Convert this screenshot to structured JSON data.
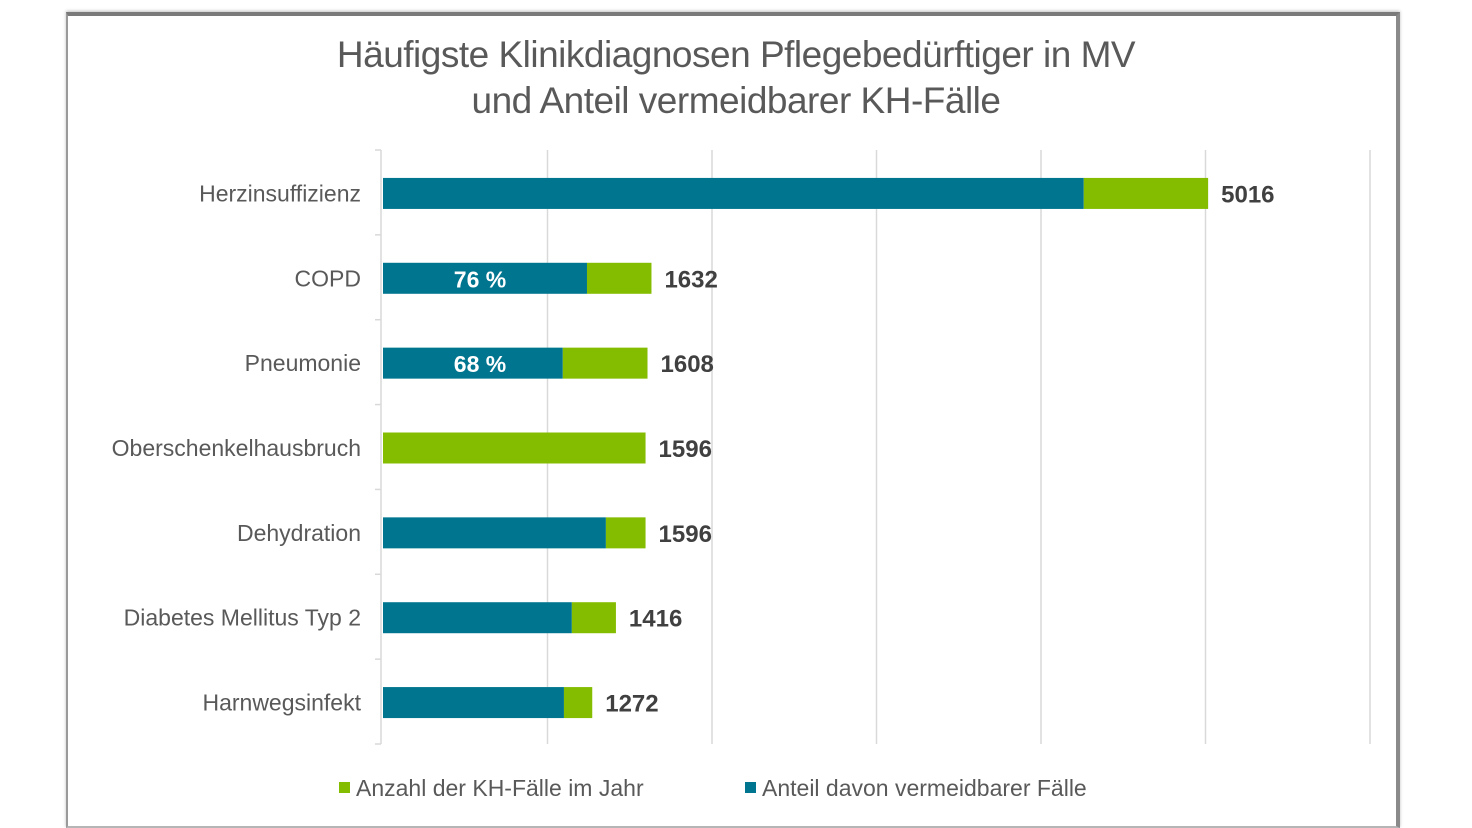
{
  "chart_data": {
    "type": "bar",
    "orientation": "horizontal",
    "stacked": true,
    "title": "Häufigste Klinikdiagnosen Pflegebedürftiger in MV\nund Anteil vermeidbarer KH-Fälle",
    "title_lines": [
      "Häufigste Klinikdiagnosen Pflegebedürftiger in MV",
      "und Anteil vermeidbarer KH-Fälle"
    ],
    "xlabel": "",
    "ylabel": "",
    "xlim": [
      0,
      6000
    ],
    "grid": true,
    "categories": [
      "Herzinsuffizienz",
      "COPD",
      "Pneumonie",
      "Oberschenkelhausbruch",
      "Dehydration",
      "Diabetes Mellitus Typ 2",
      "Harnwegsinfekt"
    ],
    "totals": [
      5016,
      1632,
      1608,
      1596,
      1596,
      1416,
      1272
    ],
    "total_labels": [
      "5016",
      "1632",
      "1608",
      "1596",
      "1596",
      "1416",
      "1272"
    ],
    "series": [
      {
        "name": "Anteil davon vermeidbarer Fälle",
        "color": "#00758f",
        "values": [
          4260,
          1240,
          1093,
          0,
          1355,
          1148,
          1100
        ]
      },
      {
        "name": "Anzahl der KH-Fälle im Jahr",
        "color": "#84bc00",
        "values": [
          756,
          392,
          515,
          1596,
          241,
          268,
          172
        ]
      }
    ],
    "percent_labels": [
      "",
      "76 %",
      "68 %",
      "",
      "",
      "",
      ""
    ],
    "legend": {
      "position": "bottom",
      "items": [
        {
          "label": "Anzahl der KH-Fälle im Jahr",
          "color": "#84bc00"
        },
        {
          "label": "Anteil davon vermeidbarer Fälle",
          "color": "#00758f"
        }
      ]
    }
  }
}
